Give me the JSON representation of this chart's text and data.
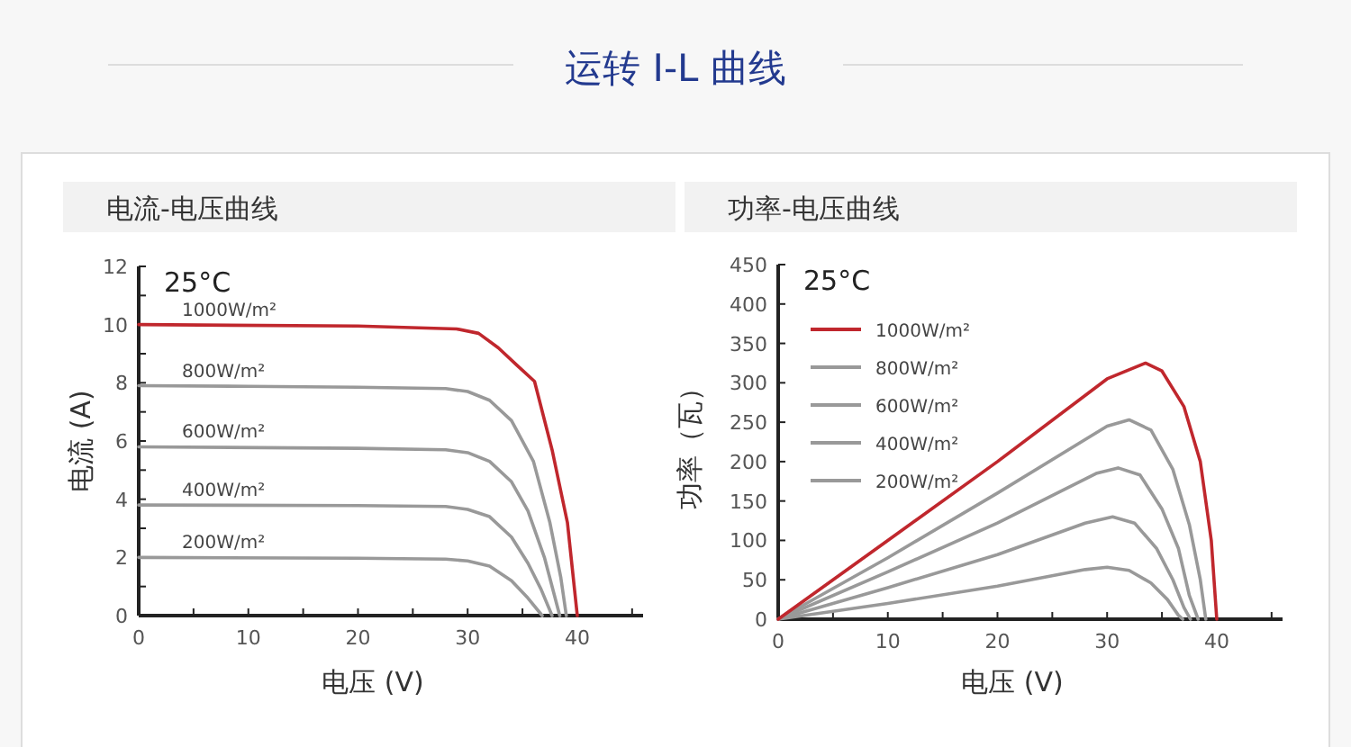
{
  "chart_data": [
    {
      "type": "line",
      "title": "运转 I-L 曲线",
      "subtitle": "电流-电压曲线",
      "xlabel": "电压 (V)",
      "ylabel": "电流 (A)",
      "annotations": [
        "25°C"
      ],
      "grid": false,
      "marker": "none",
      "line_style": "solid",
      "xlim": [
        0,
        46
      ],
      "xticks": [
        0,
        {
          "value": 5,
          "label": null
        },
        10,
        {
          "value": 15,
          "label": null
        },
        20,
        {
          "value": 25,
          "label": null
        },
        30,
        {
          "value": 35,
          "label": null
        },
        40,
        {
          "value": 45,
          "label": null
        }
      ],
      "ylim": [
        0,
        12
      ],
      "yticks": [
        0,
        {
          "value": 1,
          "label": null
        },
        2,
        {
          "value": 3,
          "label": null
        },
        4,
        {
          "value": 5,
          "label": null
        },
        6,
        {
          "value": 7,
          "label": null
        },
        8,
        {
          "value": 9,
          "label": null
        },
        10,
        {
          "value": 11,
          "label": null
        },
        12
      ],
      "series": [
        {
          "name": "1000W/m²",
          "color": "#c0272d",
          "x": [
            0,
            20,
            29,
            31,
            32.8,
            34.5,
            36.1,
            37.7,
            39.1,
            40
          ],
          "values": [
            10.0,
            9.95,
            9.85,
            9.7,
            9.2,
            8.6,
            8.05,
            5.7,
            3.2,
            0
          ]
        },
        {
          "name": "800W/m²",
          "color": "#999999",
          "x": [
            0,
            10,
            20,
            28,
            30,
            32,
            34,
            36,
            37.5,
            38.5,
            39
          ],
          "values": [
            7.9,
            7.88,
            7.85,
            7.8,
            7.7,
            7.4,
            6.7,
            5.3,
            3.2,
            1.3,
            0
          ]
        },
        {
          "name": "600W/m²",
          "color": "#999999",
          "x": [
            0,
            20,
            28,
            30,
            32,
            34,
            35.5,
            37,
            38.4
          ],
          "values": [
            5.8,
            5.75,
            5.7,
            5.6,
            5.3,
            4.6,
            3.6,
            2.0,
            0
          ]
        },
        {
          "name": "400W/m²",
          "color": "#999999",
          "x": [
            0,
            20,
            28,
            30,
            32,
            34,
            35.5,
            36.7,
            37.7
          ],
          "values": [
            3.8,
            3.78,
            3.75,
            3.65,
            3.4,
            2.7,
            1.8,
            0.9,
            0
          ]
        },
        {
          "name": "200W/m²",
          "color": "#999999",
          "x": [
            0,
            20,
            28,
            30,
            32,
            34,
            35.5,
            36.8
          ],
          "values": [
            2.0,
            1.97,
            1.94,
            1.88,
            1.7,
            1.2,
            0.6,
            0
          ]
        }
      ]
    },
    {
      "type": "line",
      "subtitle": "功率-电压曲线",
      "xlabel": "电压 (V)",
      "ylabel": "功率（瓦）",
      "annotations": [
        "25°C"
      ],
      "grid": false,
      "marker": "none",
      "line_style": "solid",
      "legend": "top left",
      "xlim": [
        0,
        46
      ],
      "xticks": [
        0,
        {
          "value": 5,
          "label": null
        },
        10,
        {
          "value": 15,
          "label": null
        },
        20,
        {
          "value": 25,
          "label": null
        },
        30,
        {
          "value": 35,
          "label": null
        },
        40,
        {
          "value": 45,
          "label": null
        }
      ],
      "ylim": [
        0,
        450
      ],
      "yticks": [
        0,
        50,
        100,
        150,
        200,
        250,
        300,
        350,
        400,
        450
      ],
      "series": [
        {
          "name": "1000W/m²",
          "color": "#c0272d",
          "x": [
            0,
            10,
            20,
            30,
            33.5,
            35,
            37,
            38.5,
            39.5,
            40
          ],
          "values": [
            0,
            100,
            200,
            305,
            325,
            315,
            270,
            200,
            100,
            0
          ]
        },
        {
          "name": "800W/m²",
          "color": "#999999",
          "x": [
            0,
            10,
            20,
            30,
            32,
            34,
            36,
            37.5,
            38.5,
            39
          ],
          "values": [
            0,
            78,
            160,
            245,
            253,
            240,
            190,
            120,
            50,
            0
          ]
        },
        {
          "name": "600W/m²",
          "color": "#999999",
          "x": [
            0,
            10,
            20,
            29,
            31,
            33,
            35,
            36.5,
            37.5,
            38.3
          ],
          "values": [
            0,
            60,
            122,
            185,
            192,
            183,
            140,
            90,
            30,
            0
          ]
        },
        {
          "name": "400W/m²",
          "color": "#999999",
          "x": [
            0,
            10,
            20,
            28,
            30.5,
            32.5,
            34.5,
            36,
            37,
            37.6
          ],
          "values": [
            0,
            40,
            82,
            122,
            130,
            122,
            90,
            50,
            15,
            0
          ]
        },
        {
          "name": "200W/m²",
          "color": "#999999",
          "x": [
            0,
            10,
            20,
            28,
            30,
            32,
            34,
            35.5,
            36.5,
            36.9
          ],
          "values": [
            0,
            20,
            42,
            63,
            66,
            62,
            46,
            25,
            5,
            0
          ]
        }
      ]
    }
  ]
}
